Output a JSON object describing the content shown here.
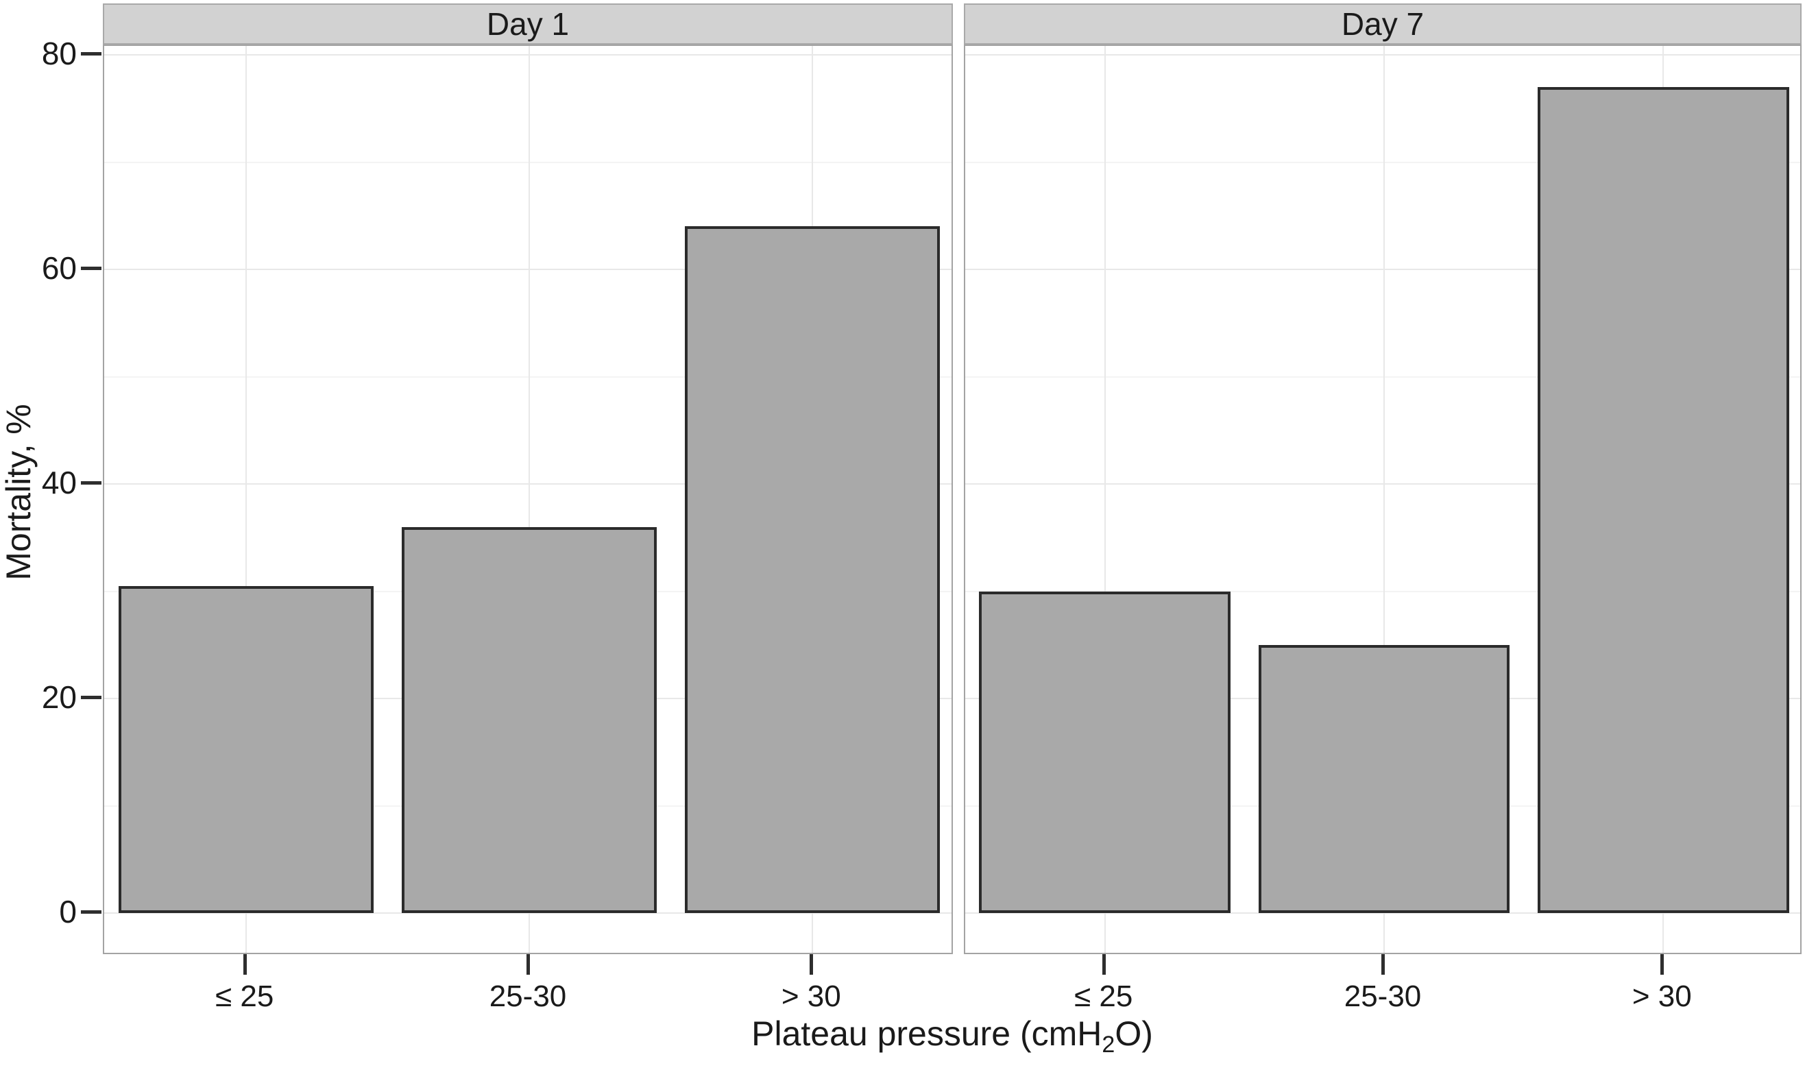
{
  "chart_data": {
    "type": "bar",
    "faceted": true,
    "facets": [
      {
        "label": "Day 1",
        "values": [
          30.5,
          36,
          64
        ]
      },
      {
        "label": "Day 7",
        "values": [
          30,
          25,
          77
        ]
      }
    ],
    "categories": [
      "≤ 25",
      "25-30",
      "> 30"
    ],
    "ylabel": "Mortality, %",
    "xlabel": "Plateau pressure (cmH2O)",
    "xlabel_parts": {
      "pre": "Plateau pressure (cmH",
      "sub": "2",
      "post": "O)"
    },
    "ylim": [
      0,
      80
    ],
    "yticks": [
      0,
      20,
      40,
      60,
      80
    ],
    "grid": "horizontal major + minor, vertical major at categories",
    "legend": "none"
  },
  "colors": {
    "bar_fill": "#a9a9a9",
    "bar_border": "#2b2b2b",
    "strip_bg": "#d2d2d2",
    "strip_border": "#a9a9a9",
    "panel_border": "#a3a3a3",
    "grid_major": "#e8e8e8",
    "grid_minor": "#f4f4f4",
    "tick": "#2e2e2e",
    "text": "#1a1a1a"
  }
}
